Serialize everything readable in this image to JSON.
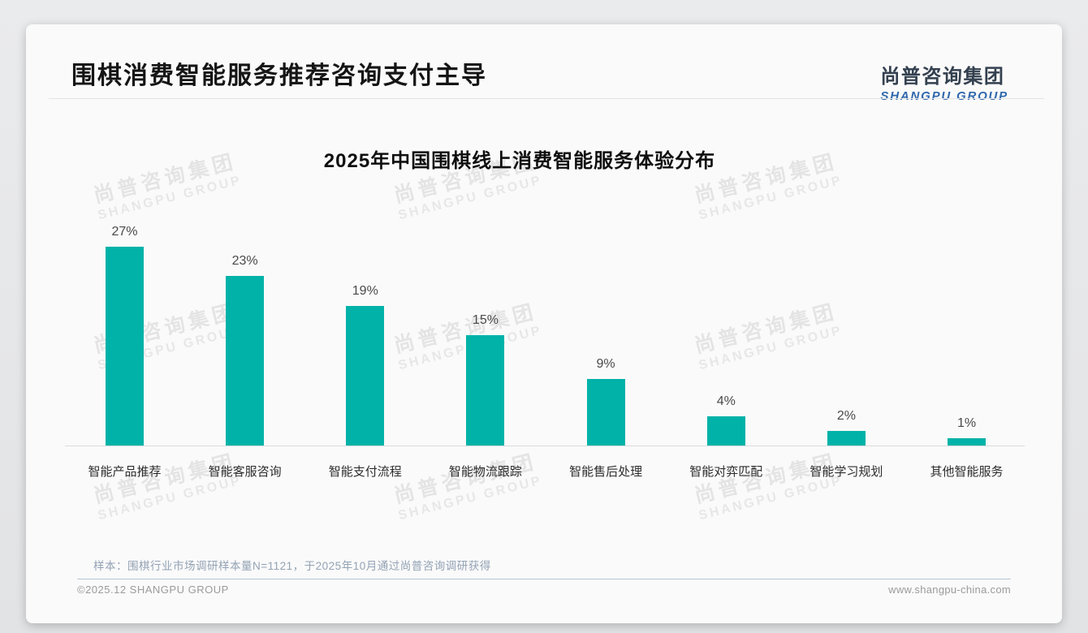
{
  "header": {
    "title": "围棋消费智能服务推荐咨询支付主导",
    "logo_cn": "尚普咨询集团",
    "logo_en": "SHANGPU GROUP"
  },
  "chart_data": {
    "type": "bar",
    "title": "2025年中国围棋线上消费智能服务体验分布",
    "categories": [
      "智能产品推荐",
      "智能客服咨询",
      "智能支付流程",
      "智能物流跟踪",
      "智能售后处理",
      "智能对弈匹配",
      "智能学习规划",
      "其他智能服务"
    ],
    "values": [
      27,
      23,
      19,
      15,
      9,
      4,
      2,
      1
    ],
    "unit": "%",
    "bar_color": "#00b2a8",
    "xlabel": "",
    "ylabel": "",
    "ylim": [
      0,
      30
    ],
    "grid": false,
    "legend": "none",
    "value_labels": "above-bars"
  },
  "watermark": {
    "line1": "尚普咨询集团",
    "line2": "SHANGPU GROUP"
  },
  "footer": {
    "sample_note": "样本：围棋行业市场调研样本量N=1121，于2025年10月通过尚普咨询调研获得",
    "copyright": "©2025.12 SHANGPU GROUP",
    "website": "www.shangpu-china.com"
  },
  "colors": {
    "bar": "#00b2a8",
    "logo_cn": "#33404f",
    "logo_en": "#2f67ac",
    "note": "#93a2b4"
  }
}
